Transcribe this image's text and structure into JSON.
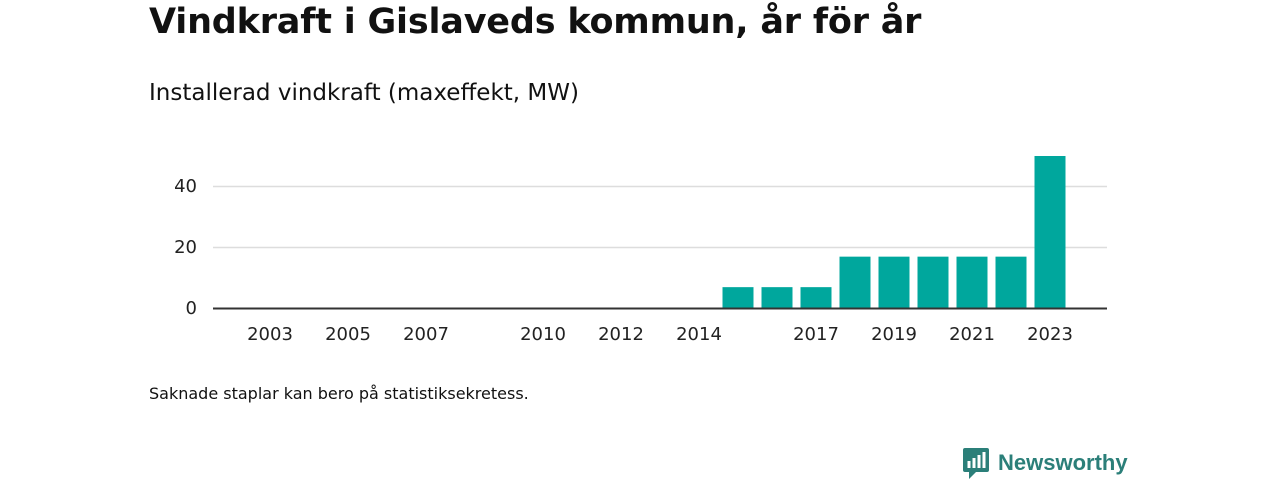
{
  "title": "Vindkraft i Gislaveds kommun, år för år",
  "subtitle": "Installerad vindkraft (maxeffekt, MW)",
  "note": "Saknade staplar kan bero på statistiksekretess.",
  "brand": "Newsworthy",
  "colors": {
    "bar": "#00a79d",
    "grid": "#dddddd",
    "axis": "#333333",
    "brand": "#2b7f79"
  },
  "icons": {
    "brand": "newsworthy-bar-chart-logo-icon"
  },
  "chart_data": {
    "type": "bar",
    "x": [
      2002,
      2003,
      2004,
      2005,
      2006,
      2007,
      2008,
      2009,
      2010,
      2011,
      2012,
      2013,
      2014,
      2015,
      2016,
      2017,
      2018,
      2019,
      2020,
      2021,
      2022,
      2023
    ],
    "values": [
      0,
      0,
      0,
      0,
      0,
      0,
      null,
      null,
      0,
      0,
      0,
      0,
      0,
      7,
      7,
      7,
      17,
      17,
      17,
      17,
      17,
      50
    ],
    "x_ticks": [
      "2003",
      "2005",
      "2007",
      "2010",
      "2012",
      "2014",
      "2017",
      "2019",
      "2021",
      "2023"
    ],
    "y_ticks": [
      0,
      20,
      40
    ],
    "ylim": [
      0,
      50
    ],
    "title": "",
    "xlabel": "",
    "ylabel": "",
    "grid": true
  }
}
